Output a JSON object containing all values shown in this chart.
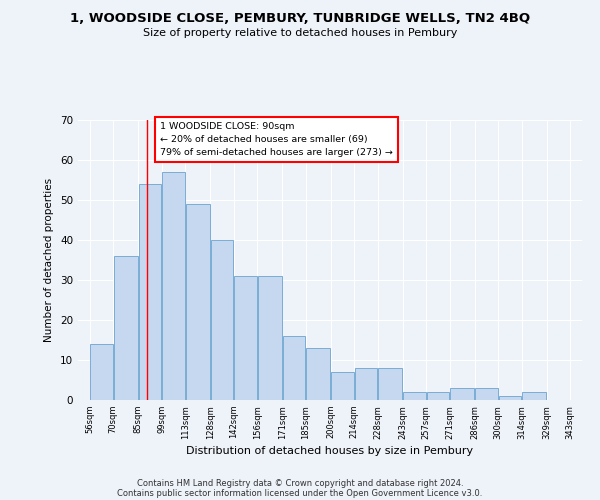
{
  "title": "1, WOODSIDE CLOSE, PEMBURY, TUNBRIDGE WELLS, TN2 4BQ",
  "subtitle": "Size of property relative to detached houses in Pembury",
  "xlabel": "Distribution of detached houses by size in Pembury",
  "ylabel": "Number of detached properties",
  "bar_left_edges": [
    56,
    70,
    85,
    99,
    113,
    128,
    142,
    156,
    171,
    185,
    200,
    214,
    228,
    243,
    257,
    271,
    286,
    300,
    314,
    329
  ],
  "bar_widths": [
    14,
    15,
    14,
    14,
    15,
    14,
    14,
    15,
    14,
    15,
    14,
    14,
    15,
    14,
    14,
    15,
    14,
    14,
    15,
    14
  ],
  "bar_heights": [
    14,
    36,
    54,
    57,
    49,
    40,
    31,
    31,
    16,
    13,
    7,
    8,
    8,
    2,
    2,
    3,
    3,
    1,
    2,
    0
  ],
  "tick_labels": [
    "56sqm",
    "70sqm",
    "85sqm",
    "99sqm",
    "113sqm",
    "128sqm",
    "142sqm",
    "156sqm",
    "171sqm",
    "185sqm",
    "200sqm",
    "214sqm",
    "228sqm",
    "243sqm",
    "257sqm",
    "271sqm",
    "286sqm",
    "300sqm",
    "314sqm",
    "329sqm",
    "343sqm"
  ],
  "tick_positions": [
    56,
    70,
    85,
    99,
    113,
    128,
    142,
    156,
    171,
    185,
    200,
    214,
    228,
    243,
    257,
    271,
    286,
    300,
    314,
    329,
    343
  ],
  "bar_color": "#c5d8f0",
  "bar_edge_color": "#7aadd4",
  "red_line_x": 90,
  "ylim": [
    0,
    70
  ],
  "yticks": [
    0,
    10,
    20,
    30,
    40,
    50,
    60,
    70
  ],
  "annotation_line1": "1 WOODSIDE CLOSE: 90sqm",
  "annotation_line2": "← 20% of detached houses are smaller (69)",
  "annotation_line3": "79% of semi-detached houses are larger (273) →",
  "footer_line1": "Contains HM Land Registry data © Crown copyright and database right 2024.",
  "footer_line2": "Contains public sector information licensed under the Open Government Licence v3.0.",
  "bg_color": "#eef2f9",
  "plot_bg_color": "#eef2f9",
  "xlim_left": 49,
  "xlim_right": 350
}
